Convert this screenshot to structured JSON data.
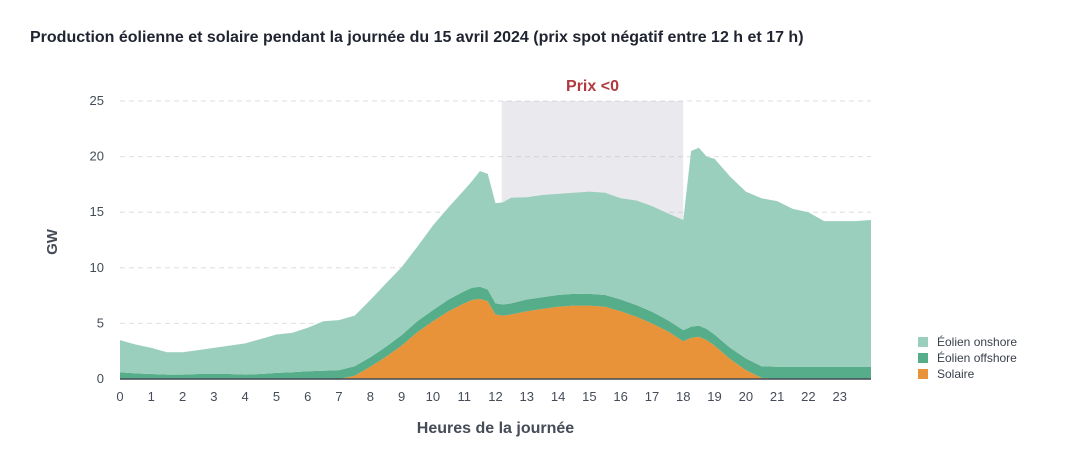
{
  "chart_data": {
    "type": "area",
    "stacked": true,
    "title": "Production éolienne et solaire pendant la journée du 15 avril 2024 (prix spot négatif entre 12 h et 17 h)",
    "xlabel": "Heures de la journée",
    "ylabel": "GW",
    "xlim": [
      0,
      24
    ],
    "ylim": [
      0,
      25
    ],
    "x_ticks": [
      "0",
      "1",
      "2",
      "3",
      "4",
      "5",
      "6",
      "7",
      "8",
      "9",
      "10",
      "11",
      "12",
      "13",
      "14",
      "15",
      "16",
      "17",
      "18",
      "19",
      "20",
      "21",
      "22",
      "23"
    ],
    "y_ticks": [
      "0",
      "5",
      "10",
      "15",
      "20",
      "25"
    ],
    "grid": "horizontal dashed",
    "legend_position": "bottom-right",
    "x": [
      0,
      0.5,
      1,
      1.5,
      2,
      2.5,
      3,
      3.5,
      4,
      4.5,
      5,
      5.5,
      6,
      6.5,
      7,
      7.5,
      8,
      8.5,
      9,
      9.5,
      10,
      10.5,
      11,
      11.25,
      11.5,
      11.75,
      12,
      12.25,
      12.5,
      13,
      13.5,
      14,
      14.5,
      15,
      15.5,
      16,
      16.5,
      17,
      17.5,
      18,
      18.25,
      18.5,
      18.75,
      19,
      19.5,
      20,
      20.5,
      21,
      21.5,
      22,
      22.5,
      23,
      23.5,
      24
    ],
    "series": [
      {
        "name": "Solaire",
        "color": "#e8923a",
        "values": [
          0,
          0,
          0,
          0,
          0,
          0,
          0,
          0,
          0,
          0,
          0,
          0,
          0,
          0,
          0,
          0.3,
          1.1,
          2.0,
          3.0,
          4.2,
          5.2,
          6.1,
          6.8,
          7.1,
          7.2,
          7.0,
          5.8,
          5.7,
          5.8,
          6.1,
          6.3,
          6.5,
          6.6,
          6.6,
          6.5,
          6.1,
          5.6,
          5.0,
          4.3,
          3.4,
          3.7,
          3.8,
          3.5,
          3.0,
          1.8,
          0.8,
          0.1,
          0,
          0,
          0,
          0,
          0,
          0,
          0
        ]
      },
      {
        "name": "Éolien offshore",
        "color": "#55ad8a",
        "values": [
          0.6,
          0.5,
          0.45,
          0.4,
          0.4,
          0.45,
          0.45,
          0.45,
          0.4,
          0.45,
          0.55,
          0.6,
          0.7,
          0.75,
          0.8,
          0.85,
          0.85,
          0.9,
          0.95,
          1.0,
          1.0,
          1.05,
          1.1,
          1.1,
          1.1,
          1.05,
          1.0,
          1.0,
          1.0,
          1.05,
          1.05,
          1.05,
          1.05,
          1.05,
          1.05,
          1.05,
          1.05,
          1.05,
          1.0,
          1.0,
          1.0,
          1.0,
          1.0,
          1.0,
          1.0,
          1.05,
          1.05,
          1.1,
          1.1,
          1.1,
          1.1,
          1.1,
          1.1,
          1.1
        ]
      },
      {
        "name": "Éolien onshore",
        "color": "#9acebd",
        "values": [
          2.9,
          2.6,
          2.35,
          2.0,
          2.0,
          2.15,
          2.35,
          2.55,
          2.8,
          3.15,
          3.45,
          3.55,
          3.9,
          4.45,
          4.5,
          4.55,
          5.15,
          5.7,
          6.1,
          6.7,
          7.6,
          8.3,
          9.1,
          9.6,
          10.4,
          10.4,
          9.0,
          9.2,
          9.5,
          9.2,
          9.2,
          9.1,
          9.1,
          9.2,
          9.2,
          9.1,
          9.4,
          9.5,
          9.6,
          9.9,
          15.8,
          16.0,
          15.5,
          15.8,
          15.4,
          15.0,
          15.1,
          14.9,
          14.2,
          13.9,
          13.1,
          13.1,
          13.1,
          13.2
        ]
      }
    ],
    "annotations": [
      {
        "type": "shaded_range",
        "x_start": 12.2,
        "x_end": 18,
        "color": "#bfbac8",
        "label": "Prix <0",
        "label_color": "#b03a3f"
      }
    ]
  }
}
